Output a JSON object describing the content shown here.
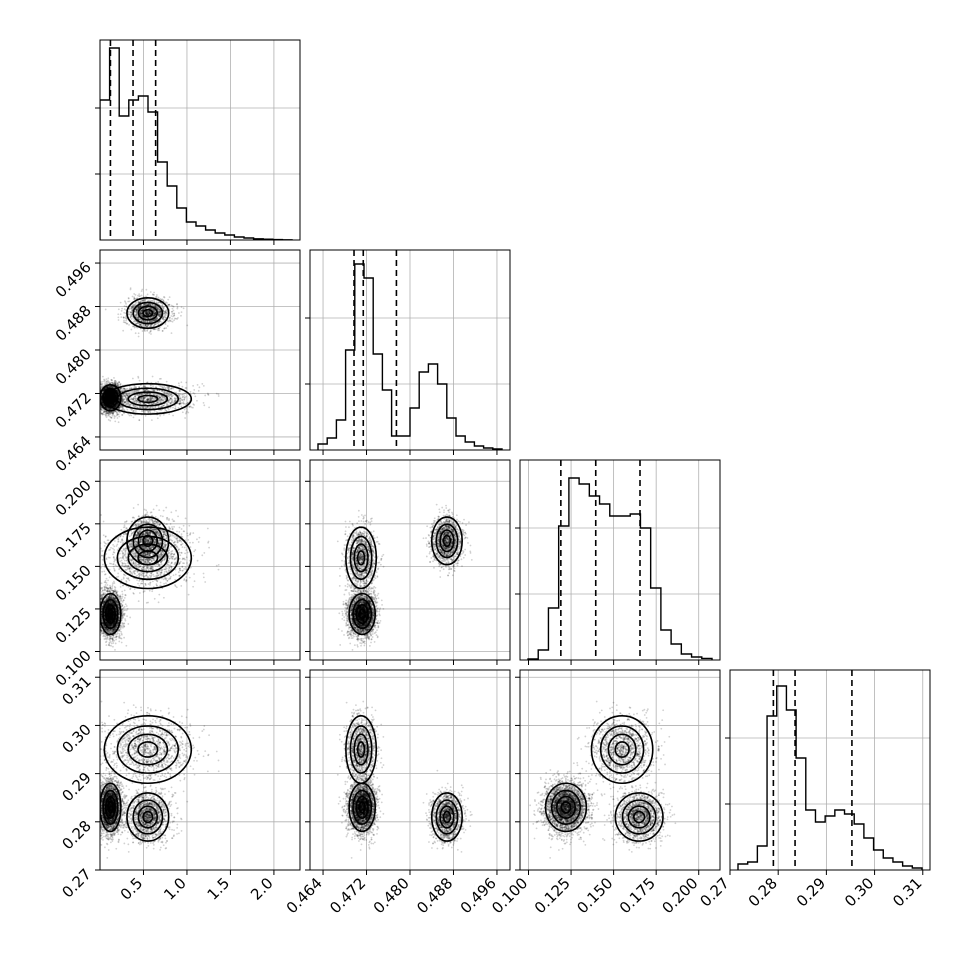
{
  "chart_data": {
    "type": "corner",
    "description_free": true,
    "parameters": [
      {
        "range": [
          0.0,
          2.3
        ],
        "ticks": [
          0.5,
          1.0,
          1.5,
          2.0
        ],
        "tick_labels": [
          "0.5",
          "1.0",
          "1.5",
          "2.0"
        ],
        "quantiles": [
          0.12,
          0.38,
          0.64
        ]
      },
      {
        "range": [
          0.4616,
          0.4984
        ],
        "ticks": [
          0.464,
          0.472,
          0.48,
          0.488,
          0.496
        ],
        "tick_labels": [
          "0.464",
          "0.472",
          "0.480",
          "0.488",
          "0.496"
        ],
        "quantiles": [
          0.4697,
          0.4714,
          0.4775
        ]
      },
      {
        "range": [
          0.095,
          0.2125
        ],
        "ticks": [
          0.1,
          0.125,
          0.15,
          0.175,
          0.2
        ],
        "tick_labels": [
          "0.100",
          "0.125",
          "0.150",
          "0.175",
          "0.200"
        ],
        "quantiles": [
          0.119,
          0.1395,
          0.1655
        ]
      },
      {
        "range": [
          0.27,
          0.3115
        ],
        "ticks": [
          0.27,
          0.28,
          0.29,
          0.3,
          0.31
        ],
        "tick_labels": [
          "0.27",
          "0.28",
          "0.29",
          "0.30",
          "0.31"
        ],
        "quantiles": [
          0.279,
          0.2835,
          0.2953
        ]
      }
    ],
    "histograms": [
      {
        "param": 0,
        "step_values": [
          0.7,
          0.96,
          0.62,
          0.7,
          0.72,
          0.64,
          0.39,
          0.27,
          0.16,
          0.09,
          0.07,
          0.05,
          0.035,
          0.025,
          0.015,
          0.01,
          0.006,
          0.004,
          0.002,
          0.001
        ]
      },
      {
        "param": 1,
        "step_values": [
          0.03,
          0.06,
          0.15,
          0.5,
          0.93,
          0.86,
          0.48,
          0.3,
          0.07,
          0.07,
          0.21,
          0.39,
          0.43,
          0.33,
          0.16,
          0.07,
          0.04,
          0.02,
          0.01,
          0.005
        ]
      },
      {
        "param": 2,
        "step_values": [
          0.005,
          0.05,
          0.26,
          0.67,
          0.91,
          0.88,
          0.82,
          0.78,
          0.72,
          0.72,
          0.73,
          0.66,
          0.36,
          0.15,
          0.08,
          0.03,
          0.015,
          0.008
        ]
      },
      {
        "param": 3,
        "step_values": [
          0.03,
          0.04,
          0.12,
          0.77,
          0.92,
          0.8,
          0.56,
          0.3,
          0.24,
          0.27,
          0.3,
          0.28,
          0.23,
          0.16,
          0.1,
          0.06,
          0.04,
          0.02,
          0.01
        ]
      }
    ],
    "modes": [
      {
        "weight": 0.55,
        "mean": [
          0.12,
          0.4712,
          0.122,
          0.283
        ],
        "sd": [
          0.06,
          0.0012,
          0.006,
          0.0025
        ]
      },
      {
        "weight": 0.25,
        "mean": [
          0.55,
          0.4868,
          0.165,
          0.281
        ],
        "sd": [
          0.12,
          0.0014,
          0.007,
          0.0025
        ]
      },
      {
        "weight": 0.2,
        "mean": [
          0.55,
          0.471,
          0.155,
          0.295
        ],
        "sd": [
          0.25,
          0.0014,
          0.009,
          0.0035
        ]
      }
    ],
    "density_points": 6000
  }
}
